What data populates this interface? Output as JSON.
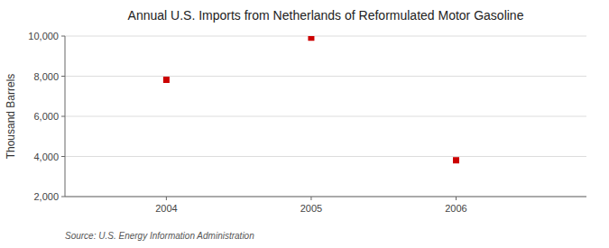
{
  "chart_data": {
    "type": "scatter",
    "title": "Annual U.S. Imports from Netherlands of Reformulated Motor Gasoline",
    "y_label": "Thousand Barrels",
    "annotations": [
      "Source: U.S. Energy Information Administration"
    ],
    "x": [
      2004,
      2005,
      2006
    ],
    "values": [
      7821,
      9922,
      3810
    ],
    "color": "#cc0000",
    "marker": "square",
    "xlim": [
      2003.3,
      2006.9
    ],
    "ylim": [
      2000,
      10000
    ],
    "xticks": [
      2004,
      2005,
      2006
    ],
    "yticks": [
      {
        "value": 2000,
        "label": "2,000"
      },
      {
        "value": 4000,
        "label": "4,000"
      },
      {
        "value": 6000,
        "label": "6,000"
      },
      {
        "value": 8000,
        "label": "8,000"
      },
      {
        "value": 10000,
        "label": "10,000"
      }
    ],
    "grid": true
  }
}
